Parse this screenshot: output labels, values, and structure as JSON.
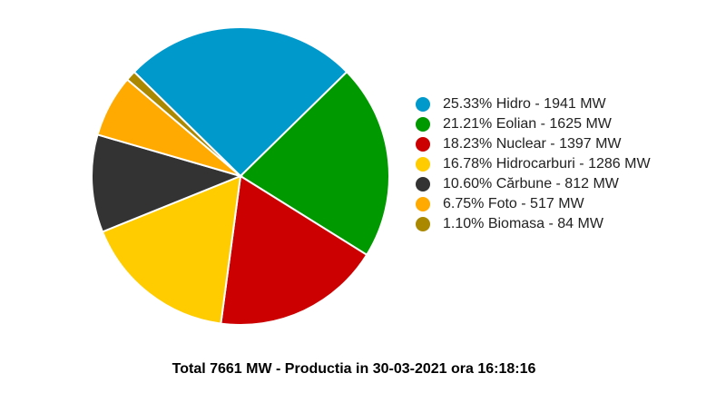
{
  "chart_data": {
    "type": "pie",
    "slices": [
      {
        "label": "Hidro",
        "percent": 25.33,
        "value": 1941,
        "color": "#0099cc",
        "legend": "25.33% Hidro - 1941 MW"
      },
      {
        "label": "Eolian",
        "percent": 21.21,
        "value": 1625,
        "color": "#009900",
        "legend": "21.21% Eolian - 1625 MW"
      },
      {
        "label": "Nuclear",
        "percent": 18.23,
        "value": 1397,
        "color": "#cc0000",
        "legend": "18.23% Nuclear - 1397 MW"
      },
      {
        "label": "Hidrocarburi",
        "percent": 16.78,
        "value": 1286,
        "color": "#ffcc00",
        "legend": "16.78% Hidrocarburi - 1286 MW"
      },
      {
        "label": "Cărbune",
        "percent": 10.6,
        "value": 812,
        "color": "#333333",
        "legend": "10.60% Cărbune - 812 MW"
      },
      {
        "label": "Foto",
        "percent": 6.75,
        "value": 517,
        "color": "#ffaa00",
        "legend": "6.75% Foto - 517 MW"
      },
      {
        "label": "Biomasa",
        "percent": 1.1,
        "value": 84,
        "color": "#aa8800",
        "legend": "1.10% Biomasa - 84 MW"
      }
    ],
    "unit": "MW",
    "legend_position": "right",
    "title": "Total 7661 MW - Productia in 30-03-2021 ora 16:18:16"
  }
}
